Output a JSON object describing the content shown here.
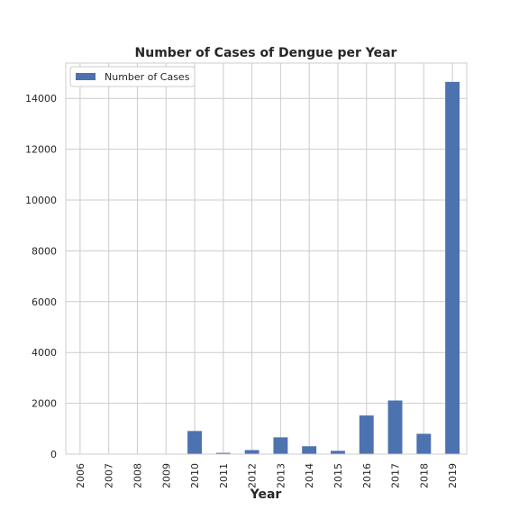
{
  "chart_data": {
    "type": "bar",
    "title": "Number of Cases of Dengue per Year",
    "xlabel": "Year",
    "ylabel": "",
    "categories": [
      "2006",
      "2007",
      "2008",
      "2009",
      "2010",
      "2011",
      "2012",
      "2013",
      "2014",
      "2015",
      "2016",
      "2017",
      "2018",
      "2019"
    ],
    "series": [
      {
        "name": "Number of Cases",
        "color": "#4c72b0",
        "values": [
          0,
          0,
          0,
          0,
          910,
          50,
          160,
          660,
          310,
          130,
          1520,
          2110,
          800,
          14650
        ]
      }
    ],
    "ylim": [
      0,
      15390
    ],
    "yticks": [
      "0",
      "2000",
      "4000",
      "6000",
      "8000",
      "10000",
      "12000",
      "14000"
    ],
    "grid": true,
    "legend_position": "top-left",
    "colors": {
      "bar": "#4c72b0",
      "grid": "#cccccc",
      "frame": "#cccccc",
      "text": "#262626",
      "background": "#ffffff"
    }
  }
}
